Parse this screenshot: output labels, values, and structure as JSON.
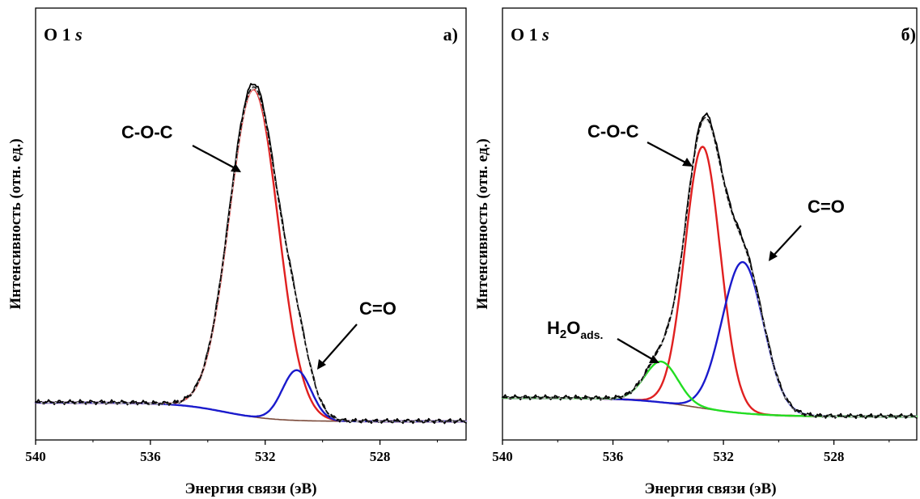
{
  "chart_data": [
    {
      "type": "line",
      "title": "O 1s",
      "panel_label": "а)",
      "xlabel": "Энергия связи (эВ)",
      "ylabel": "Интенсивность (отн. ед.)",
      "xlim": [
        540,
        525
      ],
      "ylim": [
        0,
        1.1
      ],
      "x_reversed": true,
      "x_ticks": [
        540,
        536,
        532,
        528
      ],
      "y_ticks_shown": false,
      "grid": false,
      "baseline": {
        "level_high": 0.12,
        "level_low": 0.065,
        "center": 533.4,
        "width": 0.85
      },
      "components": [
        {
          "name": "C-O-C",
          "color": "#e02020",
          "center": 532.4,
          "height": 0.965,
          "sigma_left": 1.1,
          "sigma_right": 0.85
        },
        {
          "name": "C=O",
          "color": "#1a1acc",
          "center": 530.9,
          "height": 0.148,
          "sigma_left": 0.58,
          "sigma_right": 0.5
        }
      ],
      "envelope_color": "#000000",
      "fit_color": "#c8c8c8",
      "baseline_color": "#7b4a3a",
      "annotations": [
        {
          "text": "C-O-C",
          "target_x": 533.3,
          "target_y": 0.68
        },
        {
          "text": "C=O",
          "target_x": 531.0,
          "target_y": 0.2
        }
      ]
    },
    {
      "type": "line",
      "title": "O 1s",
      "panel_label": "б)",
      "xlabel": "Энергия связи (эВ)",
      "ylabel": "Интенсивность (отн. ед.)",
      "xlim": [
        540,
        525
      ],
      "ylim": [
        0,
        1.1
      ],
      "x_reversed": true,
      "x_ticks": [
        540,
        536,
        532,
        528
      ],
      "y_ticks_shown": false,
      "grid": false,
      "baseline": {
        "level_high": 0.125,
        "level_low": 0.07,
        "center": 533.0,
        "width": 1.1
      },
      "components": [
        {
          "name": "C-O-C",
          "color": "#e02020",
          "center": 532.75,
          "height": 0.77,
          "sigma_left": 0.78,
          "sigma_right": 0.64
        },
        {
          "name": "C=O",
          "color": "#1a1acc",
          "center": 531.3,
          "height": 0.445,
          "sigma_left": 0.55,
          "sigma_right": 0.75
        },
        {
          "name": "H2Oads.",
          "color": "#22dd22",
          "center": 534.25,
          "height": 0.12,
          "sigma_left": 0.75,
          "sigma_right": 0.6
        }
      ],
      "envelope_color": "#000000",
      "fit_color": "#c8c8c8",
      "baseline_color": "#7b4a3a",
      "annotations": [
        {
          "text": "C-O-C",
          "target_x": 533.7,
          "target_y": 0.78
        },
        {
          "text": "C=O",
          "target_x": 531.5,
          "target_y": 0.5
        },
        {
          "text": "H2Oads.",
          "target_x": 534.6,
          "target_y": 0.235
        }
      ]
    }
  ]
}
